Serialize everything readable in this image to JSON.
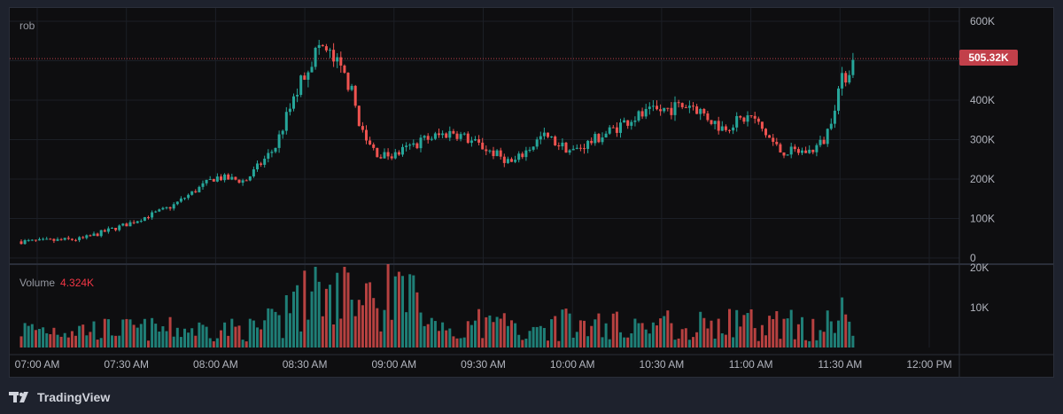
{
  "symbol": "rob",
  "volume_label": "Volume",
  "volume_value": "4.324K",
  "last_price_label": "505.32K",
  "brand": "TradingView",
  "colors": {
    "up": "#26a69a",
    "down": "#ef5350",
    "grid": "#1c1f26",
    "text": "#b2b5be",
    "price_line": "#c2404a"
  },
  "chart_data": [
    {
      "type": "candlestick",
      "title": "",
      "series_note": "price",
      "y_ticks": [
        "0",
        "100K",
        "200K",
        "300K",
        "400K",
        "500K",
        "600K"
      ],
      "ylim": [
        0,
        600000
      ],
      "x_ticks": [
        "07:00 AM",
        "07:30 AM",
        "08:00 AM",
        "08:30 AM",
        "09:00 AM",
        "09:30 AM",
        "10:00 AM",
        "10:30 AM",
        "11:00 AM",
        "11:30 AM",
        "12:00 PM"
      ],
      "close_path": [
        [
          "07:00 AM",
          42000
        ],
        [
          "07:15 AM",
          48000
        ],
        [
          "07:30 AM",
          85000
        ],
        [
          "07:45 AM",
          130000
        ],
        [
          "08:00 AM",
          205000
        ],
        [
          "08:10 AM",
          195000
        ],
        [
          "08:20 AM",
          280000
        ],
        [
          "08:25 AM",
          380000
        ],
        [
          "08:30 AM",
          470000
        ],
        [
          "08:35 AM",
          540000
        ],
        [
          "08:40 AM",
          500000
        ],
        [
          "08:45 AM",
          440000
        ],
        [
          "08:50 AM",
          300000
        ],
        [
          "08:55 AM",
          260000
        ],
        [
          "09:00 AM",
          260000
        ],
        [
          "09:10 AM",
          300000
        ],
        [
          "09:20 AM",
          320000
        ],
        [
          "09:30 AM",
          280000
        ],
        [
          "09:40 AM",
          240000
        ],
        [
          "09:50 AM",
          310000
        ],
        [
          "10:00 AM",
          270000
        ],
        [
          "10:10 AM",
          310000
        ],
        [
          "10:20 AM",
          355000
        ],
        [
          "10:30 AM",
          375000
        ],
        [
          "10:40 AM",
          390000
        ],
        [
          "10:50 AM",
          330000
        ],
        [
          "11:00 AM",
          360000
        ],
        [
          "11:10 AM",
          270000
        ],
        [
          "11:20 AM",
          270000
        ],
        [
          "11:25 AM",
          300000
        ],
        [
          "11:30 AM",
          440000
        ],
        [
          "11:35 AM",
          505320
        ]
      ],
      "last_price": 505320
    },
    {
      "type": "bar",
      "title": "",
      "series_note": "volume",
      "y_ticks": [
        "10K",
        "20K"
      ],
      "ylim": [
        0,
        20000
      ]
    }
  ]
}
